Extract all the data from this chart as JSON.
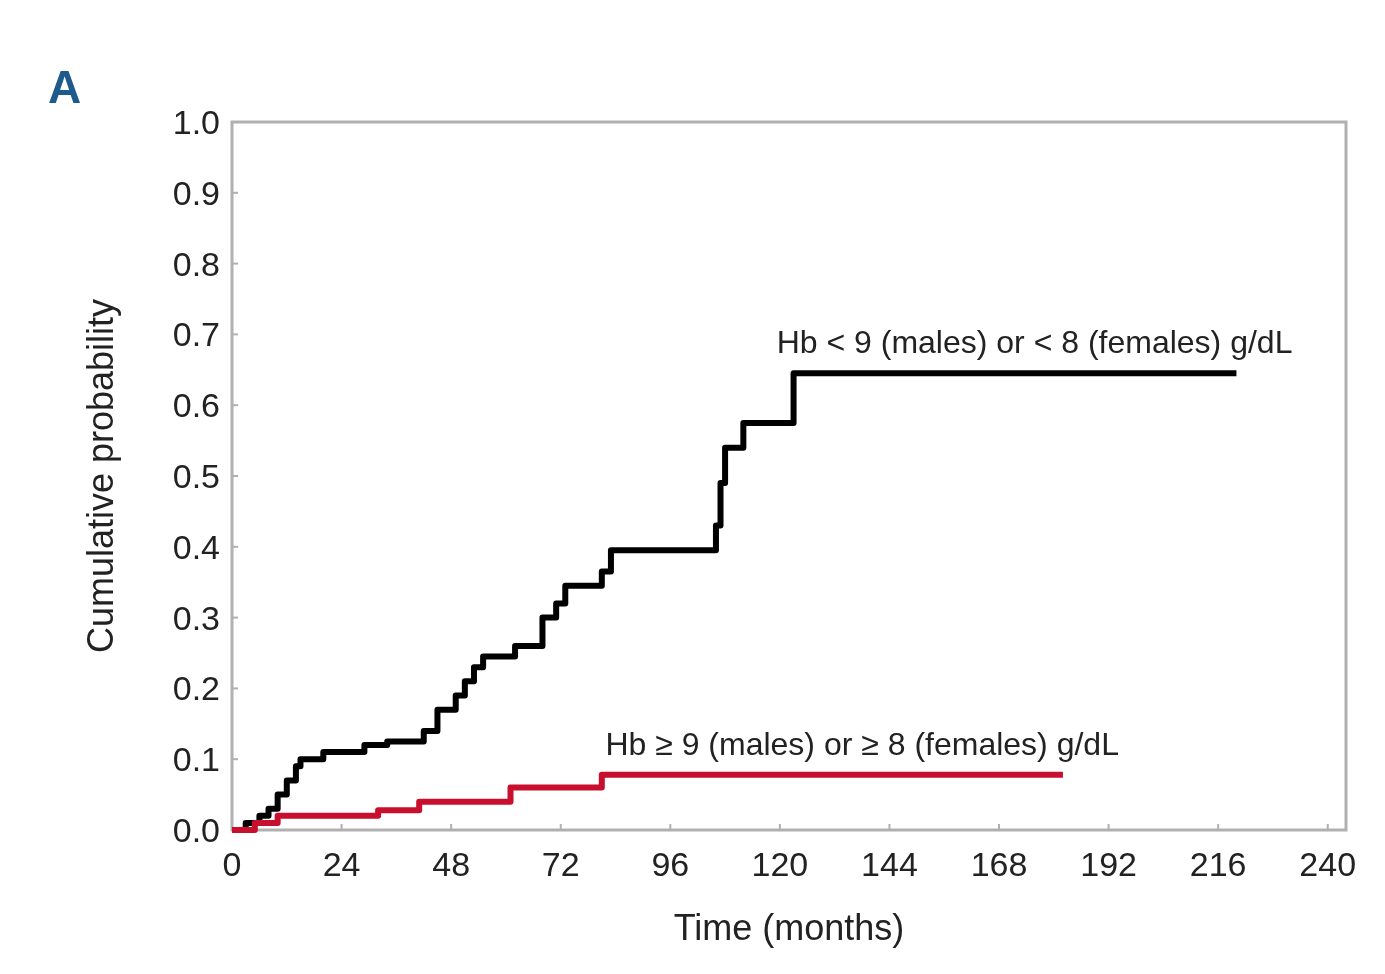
{
  "chart_data": {
    "type": "step",
    "xlabel": "Time (months)",
    "ylabel": "Cumulative probability",
    "annotations": [
      "A"
    ],
    "xlim": [
      0,
      244
    ],
    "xticks": [
      0,
      24,
      48,
      72,
      96,
      120,
      144,
      168,
      192,
      216,
      240
    ],
    "ylim": [
      0,
      1
    ],
    "yticks": [
      {
        "value": 0,
        "label": "0.0"
      },
      {
        "value": 0.1,
        "label": "0.1"
      },
      {
        "value": 0.2,
        "label": "0.2"
      },
      {
        "value": 0.3,
        "label": "0.3"
      },
      {
        "value": 0.4,
        "label": "0.4"
      },
      {
        "value": 0.5,
        "label": "0.5"
      },
      {
        "value": 0.6,
        "label": "0.6"
      },
      {
        "value": 0.7,
        "label": "0.7"
      },
      {
        "value": 0.8,
        "label": "0.8"
      },
      {
        "value": 0.9,
        "label": "0.9"
      },
      {
        "value": 1,
        "label": "1.0"
      }
    ],
    "series": [
      {
        "name": "Hb < 9 (males) or < 8 (females) g/dL",
        "color": "#000000",
        "x": [
          0,
          3,
          6,
          8,
          10,
          12,
          14,
          15,
          20,
          29,
          34,
          42,
          45,
          49,
          51,
          53,
          55,
          62,
          68,
          71,
          73,
          81,
          83,
          106,
          107,
          108,
          112,
          123,
          220
        ],
        "values": [
          0,
          0.01,
          0.02,
          0.03,
          0.05,
          0.07,
          0.09,
          0.1,
          0.11,
          0.12,
          0.125,
          0.14,
          0.17,
          0.19,
          0.21,
          0.23,
          0.245,
          0.26,
          0.3,
          0.32,
          0.345,
          0.365,
          0.395,
          0.43,
          0.49,
          0.54,
          0.575,
          0.645,
          0.645
        ]
      },
      {
        "name": "Hb ≥ 9 (males) or ≥ 8 (females) g/dL",
        "color": "#c8102e",
        "x": [
          0,
          5,
          10,
          32,
          41,
          61,
          81,
          182
        ],
        "values": [
          0,
          0.01,
          0.02,
          0.028,
          0.04,
          0.06,
          0.078,
          0.078
        ]
      }
    ]
  }
}
